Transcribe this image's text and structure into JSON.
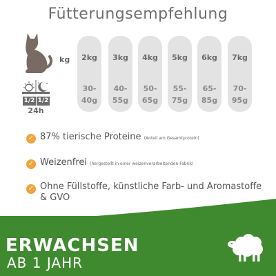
{
  "title": "Fütterungsempfehlung",
  "kg_label": "kg",
  "halves": [
    "1/2",
    "1/2"
  ],
  "daily_label": "24h",
  "table": [
    {
      "weight": "2kg",
      "grams": [
        "30-",
        "40g"
      ]
    },
    {
      "weight": "3kg",
      "grams": [
        "40-",
        "55g"
      ]
    },
    {
      "weight": "4kg",
      "grams": [
        "50-",
        "65g"
      ]
    },
    {
      "weight": "5kg",
      "grams": [
        "55-",
        "75g"
      ]
    },
    {
      "weight": "6kg",
      "grams": [
        "65-",
        "85g"
      ]
    },
    {
      "weight": "7kg",
      "grams": [
        "70-",
        "95g"
      ]
    }
  ],
  "features": [
    {
      "text": "87% tierische Proteine",
      "note": "(Anteil am Gesamtprotein)"
    },
    {
      "text": "Weizenfrei",
      "note": "(hergestellt in einer weizenverarbeitenden Fabrik)"
    },
    {
      "text": "Ohne Füllstoffe, künstliche Farb- und Aromastoffe",
      "text2": "& GVO"
    }
  ],
  "banner": {
    "title": "ERWACHSEN",
    "subtitle": "AB 1 JAHR"
  },
  "colors": {
    "green": "#3f8a2f",
    "orange": "#f2a33a",
    "pill": "#e3e3e3"
  },
  "icons": [
    "cat-icon",
    "sun-moon-icon",
    "checkmark-icon",
    "sheep-icon"
  ]
}
